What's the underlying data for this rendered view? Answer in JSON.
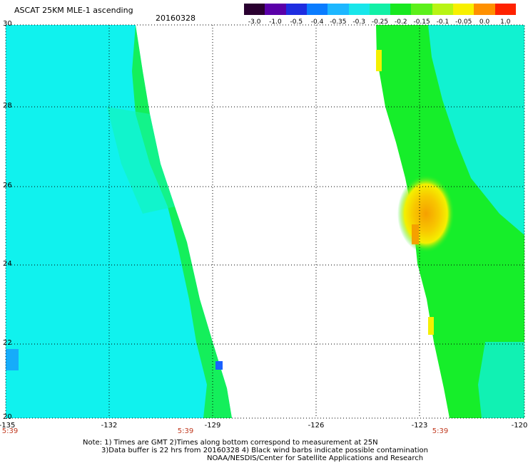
{
  "header": {
    "title": "ASCAT 25KM MLE-1 ascending",
    "date": "20160328"
  },
  "colorbar": {
    "labels": [
      "-3.0",
      "-1.0",
      "-0.5",
      "-0.4",
      "-0.35",
      "-0.3",
      "-0.25",
      "-0.2",
      "-0.15",
      "-0.1",
      "-0.05",
      "0.0",
      "1.0"
    ],
    "colors": [
      "#2a0030",
      "#5a00a8",
      "#1e2de0",
      "#0a7cff",
      "#1db7ff",
      "#18e6ea",
      "#12f0a6",
      "#18e820",
      "#5cf01a",
      "#b8f414",
      "#f8f000",
      "#ff9000",
      "#ff2200"
    ]
  },
  "map": {
    "x_ticks": [
      "-135",
      "-132",
      "-129",
      "-126",
      "-123",
      "-120"
    ],
    "y_ticks": [
      "30",
      "28",
      "26",
      "24",
      "22",
      "20"
    ],
    "time_labels": [
      "5:39",
      "5:39",
      "5:39"
    ],
    "colors": {
      "cyan": "#10f2ee",
      "teal_green": "#12f6b0",
      "green": "#16ee2a",
      "yellow": "#f4f000",
      "orange": "#f5a000",
      "blue": "#1a8fff"
    }
  },
  "notes": {
    "line1": "Note: 1) Times are GMT 2)Times along bottom correspond to measurement at 25N",
    "line2": "3)Data buffer is 22 hrs from 20160328 4) Black wind barbs indicate possible contamination",
    "line3": "NOAA/NESDIS/Center for Satellite Applications and Research"
  }
}
